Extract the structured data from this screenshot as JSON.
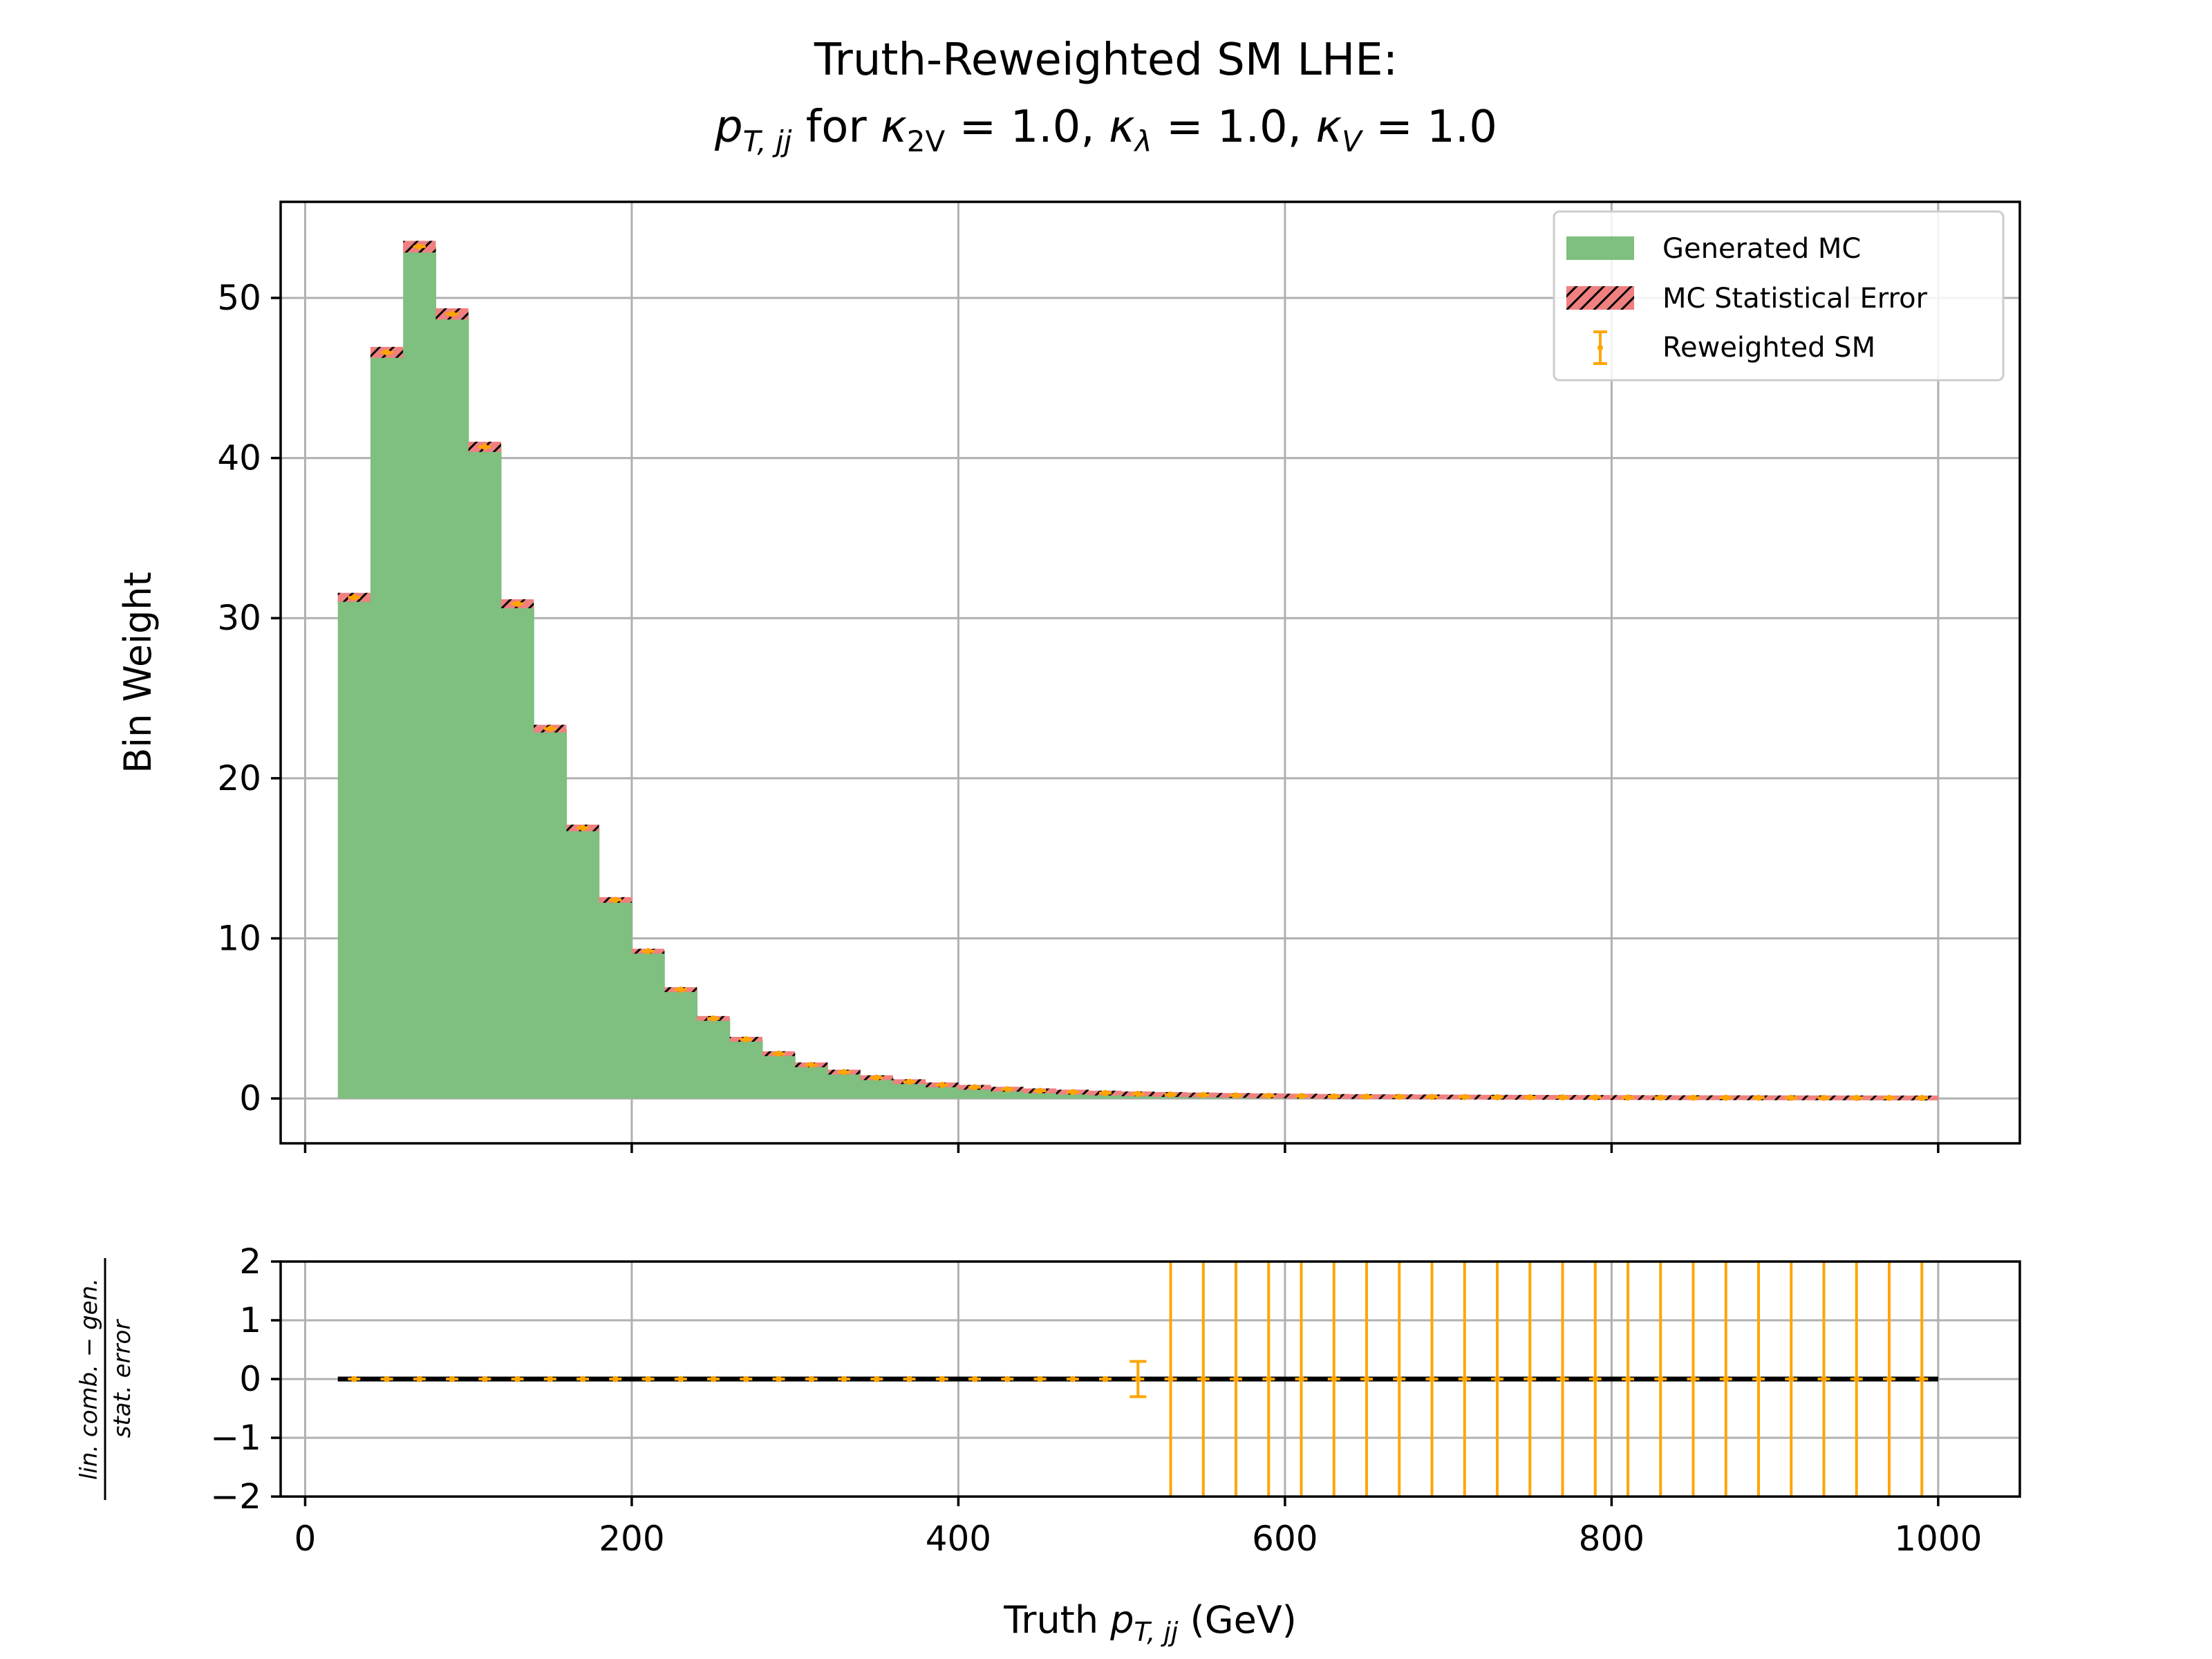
{
  "chart_data": [
    {
      "type": "bar",
      "panel": "main",
      "title": "Truth-Reweighted SM LHE:",
      "subtitle_parts": {
        "pt_sym": "p",
        "pt_sub": "T, jj",
        "for": " for ",
        "k2v_sym": "κ",
        "k2v_sub": "2V",
        "k2v_val": " = 1.0, ",
        "kl_sym": "κ",
        "kl_sub": "λ",
        "kl_val": " = 1.0, ",
        "kv_sym": "κ",
        "kv_sub": "V",
        "kv_val": " = 1.0"
      },
      "ylabel": "Bin Weight",
      "xlim": [
        -15,
        1050
      ],
      "ylim": [
        -2.8,
        56
      ],
      "xticks": [
        0,
        200,
        400,
        600,
        800,
        1000
      ],
      "yticks": [
        0,
        10,
        20,
        30,
        40,
        50
      ],
      "ytick_labels": [
        "0",
        "10",
        "20",
        "30",
        "40",
        "50"
      ],
      "grid": true,
      "legend_position": "top-right",
      "legend": [
        {
          "label": "Generated MC",
          "kind": "fill",
          "color": "#7fbf7f"
        },
        {
          "label": "MC Statistical Error",
          "kind": "hatch",
          "color": "#f08080"
        },
        {
          "label": "Reweighted SM",
          "kind": "errorbar",
          "color": "#ffa500"
        }
      ],
      "bin_edges": [
        20,
        40,
        60,
        80,
        100,
        120,
        140,
        160,
        180,
        200,
        220,
        240,
        260,
        280,
        300,
        320,
        340,
        360,
        380,
        400,
        420,
        440,
        460,
        480,
        500,
        520,
        540,
        560,
        580,
        600,
        620,
        640,
        660,
        680,
        700,
        720,
        740,
        760,
        780,
        800,
        820,
        840,
        860,
        880,
        900,
        920,
        940,
        960,
        980,
        1000
      ],
      "series": [
        {
          "name": "Generated MC",
          "values": [
            31.3,
            46.6,
            53.2,
            49.0,
            40.7,
            30.9,
            23.1,
            16.9,
            12.4,
            9.2,
            6.8,
            5.0,
            3.7,
            2.8,
            2.1,
            1.65,
            1.3,
            1.05,
            0.85,
            0.7,
            0.58,
            0.48,
            0.4,
            0.34,
            0.29,
            0.25,
            0.22,
            0.19,
            0.17,
            0.15,
            0.13,
            0.12,
            0.11,
            0.1,
            0.09,
            0.08,
            0.075,
            0.07,
            0.065,
            0.06,
            0.055,
            0.05,
            0.048,
            0.045,
            0.042,
            0.04,
            0.038,
            0.036,
            0.034
          ]
        }
      ],
      "colors": {
        "generated": "#7fbf7f",
        "stat_error": "#f08080",
        "reweighted": "#ffa500",
        "grid": "#b0b0b0"
      }
    },
    {
      "type": "scatter",
      "panel": "ratio",
      "ylabel_num": "lin. comb. − gen.",
      "ylabel_den": "stat. error",
      "xlabel_prefix": "Truth ",
      "xlabel_sym": "p",
      "xlabel_sub": "T, jj",
      "xlabel_suffix": " (GeV)",
      "xlim": [
        -15,
        1050
      ],
      "ylim": [
        -2,
        2
      ],
      "xticks": [
        0,
        200,
        400,
        600,
        800,
        1000
      ],
      "xtick_labels": [
        "0",
        "200",
        "400",
        "600",
        "800",
        "1000"
      ],
      "yticks": [
        2,
        1,
        0,
        -1,
        -2
      ],
      "ytick_labels": [
        "2",
        "1",
        "0",
        "−1",
        "−2"
      ],
      "grid": true,
      "x": [
        30,
        50,
        70,
        90,
        110,
        130,
        150,
        170,
        190,
        210,
        230,
        250,
        270,
        290,
        310,
        330,
        350,
        370,
        390,
        410,
        430,
        450,
        470,
        490,
        510,
        530,
        550,
        570,
        590,
        610,
        630,
        650,
        670,
        690,
        710,
        730,
        750,
        770,
        790,
        810,
        830,
        850,
        870,
        890,
        910,
        930,
        950,
        970,
        990
      ],
      "values": [
        0,
        0,
        0,
        0,
        0,
        0,
        0,
        0,
        0,
        0,
        0,
        0,
        0,
        0,
        0,
        0,
        0,
        0,
        0,
        0,
        0,
        0,
        0,
        0,
        0,
        0,
        0,
        0,
        0,
        0,
        0,
        0,
        0,
        0,
        0,
        0,
        0,
        0,
        0,
        0,
        0,
        0,
        0,
        0,
        0,
        0,
        0,
        0,
        0
      ],
      "errors": [
        0,
        0,
        0,
        0,
        0,
        0,
        0,
        0,
        0,
        0,
        0,
        0,
        0,
        0,
        0,
        0,
        0,
        0,
        0,
        0,
        0,
        0,
        0,
        0,
        0.3,
        30,
        30,
        30,
        30,
        30,
        30,
        30,
        30,
        30,
        30,
        30,
        30,
        30,
        30,
        30,
        30,
        30,
        30,
        30,
        30,
        30,
        30,
        30,
        30
      ]
    }
  ]
}
